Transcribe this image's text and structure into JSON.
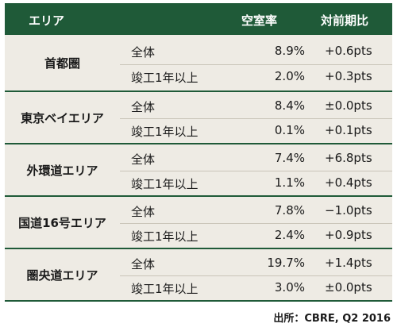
{
  "header": {
    "area": "エリア",
    "vacancy": "空室率",
    "yoy": "対前期比"
  },
  "groups": [
    {
      "name": "首都圏",
      "rows": [
        {
          "category": "全体",
          "rate": "8.9%",
          "yoy": "+0.6pts"
        },
        {
          "category": "竣工1年以上",
          "rate": "2.0%",
          "yoy": "+0.3pts"
        }
      ]
    },
    {
      "name": "東京ベイエリア",
      "rows": [
        {
          "category": "全体",
          "rate": "8.4%",
          "yoy": "±0.0pts"
        },
        {
          "category": "竣工1年以上",
          "rate": "0.1%",
          "yoy": "+0.1pts"
        }
      ]
    },
    {
      "name": "外環道エリア",
      "rows": [
        {
          "category": "全体",
          "rate": "7.4%",
          "yoy": "+6.8pts"
        },
        {
          "category": "竣工1年以上",
          "rate": "1.1%",
          "yoy": "+0.4pts"
        }
      ]
    },
    {
      "name": "国道16号エリア",
      "rows": [
        {
          "category": "全体",
          "rate": "7.8%",
          "yoy": "−1.0pts"
        },
        {
          "category": "竣工1年以上",
          "rate": "2.4%",
          "yoy": "+0.9pts"
        }
      ]
    },
    {
      "name": "圏央道エリア",
      "rows": [
        {
          "category": "全体",
          "rate": "19.7%",
          "yoy": "+1.4pts"
        },
        {
          "category": "竣工1年以上",
          "rate": "3.0%",
          "yoy": "±0.0pts"
        }
      ]
    }
  ],
  "source": "出所：CBRE, Q2 2016",
  "colors": {
    "header_bg": "#1f5a38",
    "row_bg": "#eeebe4"
  }
}
